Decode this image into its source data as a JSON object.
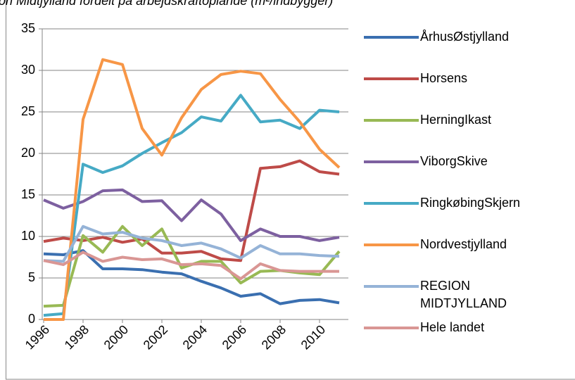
{
  "chart_data": {
    "type": "line",
    "title": "on Midtjylland fordelt på arbejdskraftoplande (m²/indbygger)",
    "x": [
      1996,
      1997,
      1998,
      1999,
      2000,
      2001,
      2002,
      2003,
      2004,
      2005,
      2006,
      2007,
      2008,
      2009,
      2010,
      2011
    ],
    "xlim": [
      1996,
      2011
    ],
    "xticks": [
      1996,
      1998,
      2000,
      2002,
      2004,
      2006,
      2008,
      2010
    ],
    "ylim": [
      0,
      35
    ],
    "yticks": [
      0,
      5,
      10,
      15,
      20,
      25,
      30,
      35
    ],
    "grid": true,
    "legend": "right",
    "series": [
      {
        "name": "ÅrhusØstjylland",
        "color": "#3a6fb0",
        "values": [
          7.9,
          7.8,
          8.3,
          6.1,
          6.1,
          6.0,
          5.7,
          5.5,
          4.6,
          3.8,
          2.8,
          3.1,
          1.9,
          2.3,
          2.4,
          2.0
        ]
      },
      {
        "name": "Horsens",
        "color": "#be4b48",
        "values": [
          9.4,
          9.8,
          9.5,
          9.9,
          9.3,
          9.7,
          8.0,
          8.0,
          8.2,
          7.3,
          7.1,
          18.2,
          18.4,
          19.1,
          17.8,
          17.5
        ]
      },
      {
        "name": "HerningIkast",
        "color": "#98b954",
        "values": [
          1.6,
          1.7,
          10.1,
          8.1,
          11.2,
          8.9,
          10.9,
          6.2,
          7.0,
          7.0,
          4.4,
          5.8,
          5.9,
          5.6,
          5.4,
          8.2
        ]
      },
      {
        "name": "ViborgSkive",
        "color": "#7d60a0",
        "values": [
          14.4,
          13.4,
          14.2,
          15.5,
          15.6,
          14.2,
          14.3,
          11.9,
          14.4,
          12.7,
          9.5,
          10.9,
          10.0,
          10.0,
          9.5,
          9.9
        ]
      },
      {
        "name": "RingkøbingSkjern",
        "color": "#46aac5",
        "values": [
          0.5,
          0.7,
          18.7,
          17.7,
          18.5,
          20.0,
          21.3,
          22.5,
          24.4,
          23.9,
          27.0,
          23.8,
          24.0,
          23.0,
          25.2,
          25.0
        ]
      },
      {
        "name": "Nordvestjylland",
        "color": "#f79646",
        "values": [
          0,
          0,
          24.1,
          31.3,
          30.7,
          23.0,
          19.8,
          24.3,
          27.7,
          29.5,
          29.9,
          29.6,
          26.5,
          23.8,
          20.5,
          18.3
        ]
      },
      {
        "name": "REGION MIDTJYLLAND",
        "color": "#95b3d7",
        "values": [
          7.1,
          7.0,
          11.2,
          10.3,
          10.5,
          9.8,
          9.5,
          8.9,
          9.2,
          8.5,
          7.4,
          8.9,
          7.9,
          7.9,
          7.7,
          7.6
        ]
      },
      {
        "name": "Hele landet",
        "color": "#d99694",
        "values": [
          7.1,
          6.6,
          8.1,
          7.0,
          7.5,
          7.2,
          7.3,
          6.6,
          6.7,
          6.5,
          4.9,
          6.7,
          5.9,
          5.8,
          5.8,
          5.8
        ]
      }
    ]
  }
}
